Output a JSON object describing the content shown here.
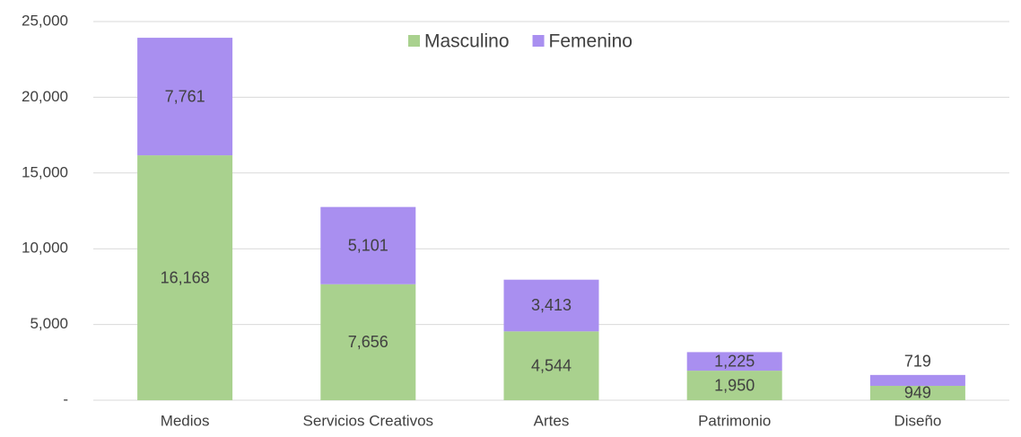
{
  "chart_data": {
    "type": "stacked_bar",
    "categories": [
      "Medios",
      "Servicios Creativos",
      "Artes",
      "Patrimonio",
      "Diseño"
    ],
    "series": [
      {
        "name": "Masculino",
        "color": "#a9d18e",
        "values": [
          16168,
          7656,
          4544,
          1950,
          949
        ],
        "value_labels": [
          "16,168",
          "7,656",
          "4,544",
          "1,950",
          "949"
        ]
      },
      {
        "name": "Femenino",
        "color": "#a98ff0",
        "values": [
          7761,
          5101,
          3413,
          1225,
          719
        ],
        "value_labels": [
          "7,761",
          "5,101",
          "3,413",
          "1,225",
          "719"
        ]
      }
    ],
    "ylim": [
      0,
      25000
    ],
    "yticks": [
      {
        "value": 0,
        "label": "-"
      },
      {
        "value": 5000,
        "label": "5,000"
      },
      {
        "value": 10000,
        "label": "10,000"
      },
      {
        "value": 15000,
        "label": "15,000"
      },
      {
        "value": 20000,
        "label": "20,000"
      },
      {
        "value": 25000,
        "label": "25,000"
      }
    ],
    "grid": true,
    "legend": "top"
  }
}
